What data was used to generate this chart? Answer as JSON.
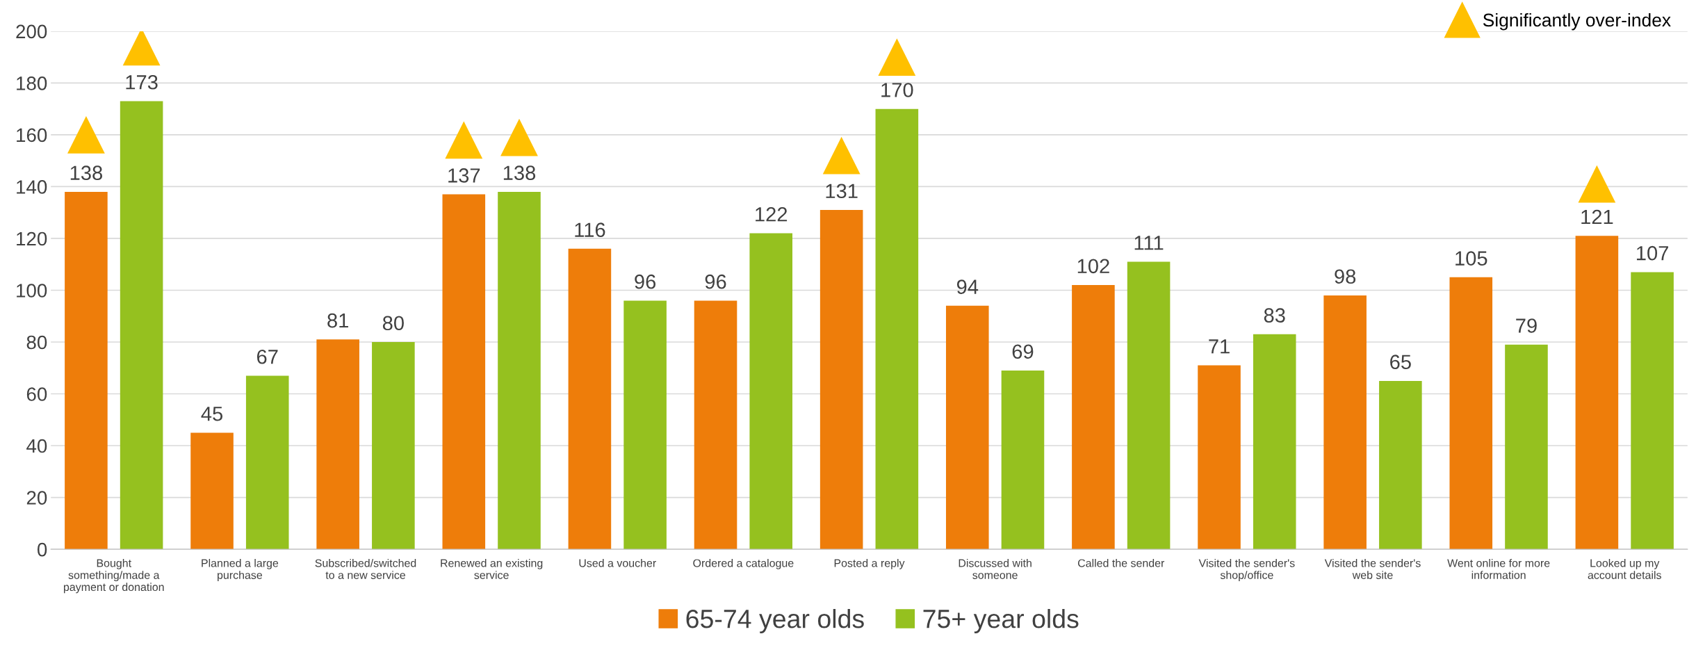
{
  "chart_data": {
    "type": "bar",
    "categories": [
      "Bought\nsomething/made a\npayment or donation",
      "Planned a large\npurchase",
      "Subscribed/switched\nto a new service",
      "Renewed an existing\nservice",
      "Used a voucher",
      "Ordered a catalogue",
      "Posted a reply",
      "Discussed with\nsomeone",
      "Called the sender",
      "Visited the sender's\nshop/office",
      "Visited the sender's\nweb site",
      "Went online for more\ninformation",
      "Looked up my\naccount details"
    ],
    "series": [
      {
        "name": "65-74 year olds",
        "color": "#ee7d0a",
        "values": [
          138,
          45,
          81,
          137,
          116,
          96,
          131,
          94,
          102,
          71,
          98,
          105,
          121
        ]
      },
      {
        "name": "75+ year olds",
        "color": "#95c11f",
        "values": [
          173,
          67,
          80,
          138,
          96,
          122,
          170,
          69,
          111,
          83,
          65,
          79,
          107
        ]
      },
      {
        "type": "scatter",
        "name": "Significantly over-index",
        "color": "#ffc000",
        "marker": "triangle",
        "values": [
          160,
          null,
          null,
          158,
          null,
          null,
          152,
          null,
          null,
          null,
          null,
          null,
          141
        ],
        "value_labels": [
          null,
          null,
          null,
          null,
          null,
          null,
          null,
          null,
          null,
          null,
          null,
          null,
          null
        ]
      },
      {
        "type": "scatter",
        "color": "#ffc000",
        "marker": "triangle",
        "values": [
          194,
          null,
          null,
          159,
          null,
          null,
          190,
          null,
          null,
          null,
          null,
          null,
          null
        ],
        "value_labels": [
          null,
          null,
          null,
          null,
          null,
          null,
          null,
          null,
          null,
          null,
          null,
          null,
          null
        ]
      }
    ],
    "ylim": [
      0,
      200
    ],
    "yticks": [
      0,
      20,
      40,
      60,
      80,
      100,
      120,
      140,
      160,
      180,
      200
    ],
    "grid": "y",
    "legend": "bottom",
    "data_labels": true
  }
}
